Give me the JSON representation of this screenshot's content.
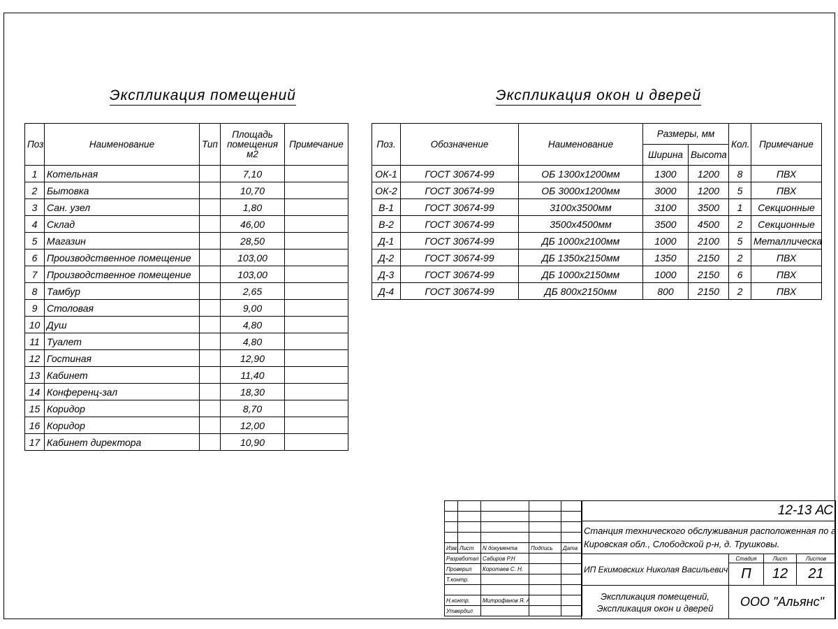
{
  "rooms_table": {
    "title": "Экспликация помещений",
    "headers": {
      "pos": "Поз.",
      "name": "Наименование",
      "type": "Тип",
      "area": "Площадь помещения м2",
      "note": "Примечание"
    },
    "rows": [
      {
        "pos": "1",
        "name": "Котельная",
        "area": "7,10"
      },
      {
        "pos": "2",
        "name": "Бытовка",
        "area": "10,70"
      },
      {
        "pos": "3",
        "name": "Сан. узел",
        "area": "1,80"
      },
      {
        "pos": "4",
        "name": "Склад",
        "area": "46,00"
      },
      {
        "pos": "5",
        "name": "Магазин",
        "area": "28,50"
      },
      {
        "pos": "6",
        "name": "Производственное помещение",
        "area": "103,00"
      },
      {
        "pos": "7",
        "name": "Производственное помещение",
        "area": "103,00"
      },
      {
        "pos": "8",
        "name": "Тамбур",
        "area": "2,65"
      },
      {
        "pos": "9",
        "name": "Столовая",
        "area": "9,00"
      },
      {
        "pos": "10",
        "name": "Душ",
        "area": "4,80"
      },
      {
        "pos": "11",
        "name": "Туалет",
        "area": "4,80"
      },
      {
        "pos": "12",
        "name": "Гостиная",
        "area": "12,90"
      },
      {
        "pos": "13",
        "name": "Кабинет",
        "area": "11,40"
      },
      {
        "pos": "14",
        "name": "Конференц-зал",
        "area": "18,30"
      },
      {
        "pos": "15",
        "name": "Коридор",
        "area": "8,70"
      },
      {
        "pos": "16",
        "name": "Коридор",
        "area": "12,00"
      },
      {
        "pos": "17",
        "name": "Кабинет директора",
        "area": "10,90"
      }
    ]
  },
  "openings_table": {
    "title": "Экспликация окон и дверей",
    "headers": {
      "pos": "Поз.",
      "designation": "Обозначение",
      "name": "Наименование",
      "sizes": "Размеры, мм",
      "width": "Ширина",
      "height": "Высота",
      "qty": "Кол.",
      "note": "Примечание"
    },
    "rows": [
      {
        "pos": "ОК-1",
        "designation": "ГОСТ 30674-99",
        "name": "ОБ 1300х1200мм",
        "width": "1300",
        "height": "1200",
        "qty": "8",
        "note": "ПВХ"
      },
      {
        "pos": "ОК-2",
        "designation": "ГОСТ 30674-99",
        "name": "ОБ 3000х1200мм",
        "width": "3000",
        "height": "1200",
        "qty": "5",
        "note": "ПВХ"
      },
      {
        "pos": "В-1",
        "designation": "ГОСТ 30674-99",
        "name": "3100х3500мм",
        "width": "3100",
        "height": "3500",
        "qty": "1",
        "note": "Секционные"
      },
      {
        "pos": "В-2",
        "designation": "ГОСТ 30674-99",
        "name": "3500х4500мм",
        "width": "3500",
        "height": "4500",
        "qty": "2",
        "note": "Секционные"
      },
      {
        "pos": "Д-1",
        "designation": "ГОСТ 30674-99",
        "name": "ДБ 1000х2100мм",
        "width": "1000",
        "height": "2100",
        "qty": "5",
        "note": "Металлическая"
      },
      {
        "pos": "Д-2",
        "designation": "ГОСТ 30674-99",
        "name": "ДБ 1350х2150мм",
        "width": "1350",
        "height": "2150",
        "qty": "2",
        "note": "ПВХ"
      },
      {
        "pos": "Д-3",
        "designation": "ГОСТ 30674-99",
        "name": "ДБ 1000х2150мм",
        "width": "1000",
        "height": "2150",
        "qty": "6",
        "note": "ПВХ"
      },
      {
        "pos": "Д-4",
        "designation": "ГОСТ 30674-99",
        "name": "ДБ 800х2150мм",
        "width": "800",
        "height": "2150",
        "qty": "2",
        "note": "ПВХ"
      }
    ]
  },
  "title_block": {
    "code": "12-13 АС",
    "address_line1": "Станция технического обслуживания расположенная по адресу",
    "address_line2": "Кировская обл., Слободской р-н, д. Трушковы.",
    "col_headers": {
      "change": "Изм.",
      "sheet": "Лист",
      "doc": "N документа",
      "sign": "Подпись",
      "date": "Дата"
    },
    "roles": [
      {
        "role": "Разработал",
        "name": "Сабиров Р.Н"
      },
      {
        "role": "Проверил",
        "name": "Коротаев С. Н."
      },
      {
        "role": "Т.контр.",
        "name": ""
      },
      {
        "role": "",
        "name": ""
      },
      {
        "role": "Н.контр.",
        "name": "Митрофанов Я. А."
      },
      {
        "role": "Утвердил",
        "name": ""
      }
    ],
    "client": "ИП Екимовских Николая Васильевич",
    "stage_label": "Стадия",
    "sheet_label": "Лист",
    "sheets_label": "Листов",
    "stage": "П",
    "sheet": "12",
    "sheets": "21",
    "drawing_title_line1": "Экспликация помещений,",
    "drawing_title_line2": "Экспликация окон и дверей",
    "company": "ООО \"Альянс\""
  }
}
